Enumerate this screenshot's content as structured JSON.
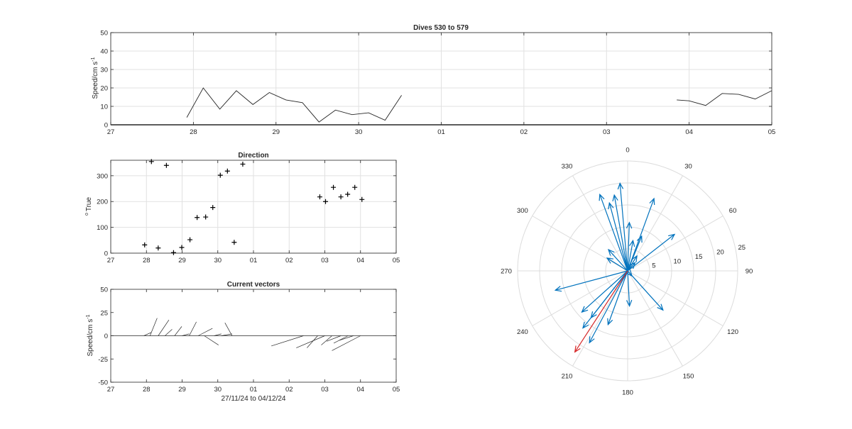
{
  "chart_data": [
    {
      "id": "speed",
      "type": "line",
      "title": "Dives 530 to 579",
      "ylabel": "Speed/cm s",
      "ylabel_sup": "-1",
      "xlabel": "",
      "xlim": [
        0,
        8
      ],
      "ylim": [
        0,
        50
      ],
      "xticks": [
        0,
        1,
        2,
        3,
        4,
        5,
        6,
        7,
        8
      ],
      "xticklabels": [
        "27",
        "28",
        "29",
        "30",
        "01",
        "02",
        "03",
        "04",
        "05"
      ],
      "yticks": [
        0,
        10,
        20,
        30,
        40,
        50
      ],
      "yticklabels": [
        "0",
        "10",
        "20",
        "30",
        "40",
        "50"
      ],
      "grid": true,
      "segments": [
        {
          "x": [
            0.92,
            1.12,
            1.32,
            1.52,
            1.72,
            1.92,
            2.12,
            2.32,
            2.52,
            2.72,
            2.92,
            3.12,
            3.32,
            3.52,
            3.72
          ],
          "y": [
            4,
            20,
            8.5,
            18.5,
            11,
            17.5,
            13.5,
            12,
            1.5,
            8,
            5.5,
            6.5,
            2.5,
            16,
            null
          ]
        },
        {
          "x": [
            6.85,
            7.0,
            7.2,
            7.4,
            7.6,
            7.8,
            8.0
          ],
          "y": [
            13.5,
            13,
            10.5,
            17,
            16.5,
            14,
            18.5
          ]
        }
      ]
    },
    {
      "id": "direction",
      "type": "scatter",
      "title": "Direction",
      "ylabel": "True",
      "ylabel_sup": "o",
      "xlim": [
        0,
        8
      ],
      "ylim": [
        0,
        360
      ],
      "xticks": [
        0,
        1,
        2,
        3,
        4,
        5,
        6,
        7,
        8
      ],
      "xticklabels": [
        "27",
        "28",
        "29",
        "30",
        "01",
        "02",
        "03",
        "04",
        "05"
      ],
      "yticks": [
        0,
        100,
        200,
        300
      ],
      "yticklabels": [
        "0",
        "100",
        "200",
        "300"
      ],
      "grid": true,
      "x": [
        0.95,
        1.14,
        1.33,
        1.56,
        1.76,
        1.99,
        2.22,
        2.42,
        2.66,
        2.86,
        3.07,
        3.27,
        3.46,
        3.7,
        5.86,
        6.02,
        6.24,
        6.45,
        6.64,
        6.84,
        7.04
      ],
      "y": [
        32,
        355,
        20,
        340,
        2,
        22,
        52,
        138,
        140,
        177,
        302,
        318,
        42,
        345,
        218,
        200,
        255,
        218,
        228,
        255,
        208
      ]
    },
    {
      "id": "vectors",
      "type": "stick",
      "title": "Current vectors",
      "ylabel": "Speed/cm s",
      "ylabel_sup": "-1",
      "xlabel": "27/11/24 to 04/12/24",
      "xlim": [
        0,
        8
      ],
      "ylim": [
        -50,
        50
      ],
      "xticks": [
        0,
        1,
        2,
        3,
        4,
        5,
        6,
        7,
        8
      ],
      "xticklabels": [
        "27",
        "28",
        "29",
        "30",
        "01",
        "02",
        "03",
        "04",
        "05"
      ],
      "yticks": [
        -50,
        -25,
        0,
        25,
        50
      ],
      "yticklabels": [
        "-50",
        "-25",
        "0",
        "25",
        "50"
      ],
      "grid": false,
      "sticks": [
        {
          "x": 0.93,
          "u": 0.2,
          "v": 3.5
        },
        {
          "x": 1.1,
          "u": 0.2,
          "v": 19
        },
        {
          "x": 1.33,
          "u": 0.3,
          "v": 17
        },
        {
          "x": 1.52,
          "u": 0.2,
          "v": 7
        },
        {
          "x": 1.79,
          "u": 0.2,
          "v": 10
        },
        {
          "x": 2.0,
          "u": 0.2,
          "v": 2
        },
        {
          "x": 2.2,
          "u": 0.2,
          "v": 15
        },
        {
          "x": 2.45,
          "u": 0.4,
          "v": 8
        },
        {
          "x": 2.62,
          "u": 0.4,
          "v": -10
        },
        {
          "x": 2.9,
          "u": 0.2,
          "v": 2
        },
        {
          "x": 3.1,
          "u": 0.3,
          "v": 2
        },
        {
          "x": 3.4,
          "u": -0.2,
          "v": 14
        },
        {
          "x": 5.4,
          "u": -0.9,
          "v": -11
        },
        {
          "x": 5.8,
          "u": -0.3,
          "v": -13
        },
        {
          "x": 6.0,
          "u": -0.8,
          "v": -13
        },
        {
          "x": 6.2,
          "u": -0.3,
          "v": -10
        },
        {
          "x": 6.45,
          "u": -0.4,
          "v": -6
        },
        {
          "x": 6.65,
          "u": -0.4,
          "v": -8
        },
        {
          "x": 6.8,
          "u": -0.4,
          "v": -5
        },
        {
          "x": 7.0,
          "u": -0.8,
          "v": -16
        }
      ]
    },
    {
      "id": "compass",
      "type": "polar-compass",
      "rmax": 25,
      "rings": [
        5,
        10,
        15,
        20,
        25
      ],
      "ring_labels": [
        "5",
        "10",
        "15",
        "20",
        "25"
      ],
      "angle_ticks": [
        0,
        30,
        60,
        90,
        120,
        150,
        180,
        210,
        240,
        270,
        300,
        330
      ],
      "angle_labels": [
        "0",
        "30",
        "60",
        "90",
        "120",
        "150",
        "180",
        "210",
        "240",
        "270",
        "300",
        "330"
      ],
      "vectors": [
        {
          "dir": 355,
          "speed": 20
        },
        {
          "dir": 340,
          "speed": 18.5
        },
        {
          "dir": 345,
          "speed": 16
        },
        {
          "dir": 350,
          "speed": 17.5
        },
        {
          "dir": 20,
          "speed": 17.5
        },
        {
          "dir": 32,
          "speed": 4
        },
        {
          "dir": 22,
          "speed": 8.5
        },
        {
          "dir": 2,
          "speed": 11
        },
        {
          "dir": 52,
          "speed": 13.5
        },
        {
          "dir": 138,
          "speed": 12
        },
        {
          "dir": 140,
          "speed": 1.5
        },
        {
          "dir": 177,
          "speed": 8
        },
        {
          "dir": 302,
          "speed": 5.5
        },
        {
          "dir": 318,
          "speed": 6.5
        },
        {
          "dir": 42,
          "speed": 2.5
        },
        {
          "dir": 10,
          "speed": 7
        },
        {
          "dir": 218,
          "speed": 13.5
        },
        {
          "dir": 200,
          "speed": 13
        },
        {
          "dir": 255,
          "speed": 17
        },
        {
          "dir": 218,
          "speed": 16.5
        },
        {
          "dir": 228,
          "speed": 14
        },
        {
          "dir": 208,
          "speed": 18.5
        },
        {
          "dir": 213,
          "speed": 22,
          "highlight": true
        }
      ],
      "color": "#0072BD",
      "highlight_color": "#D62728"
    }
  ]
}
